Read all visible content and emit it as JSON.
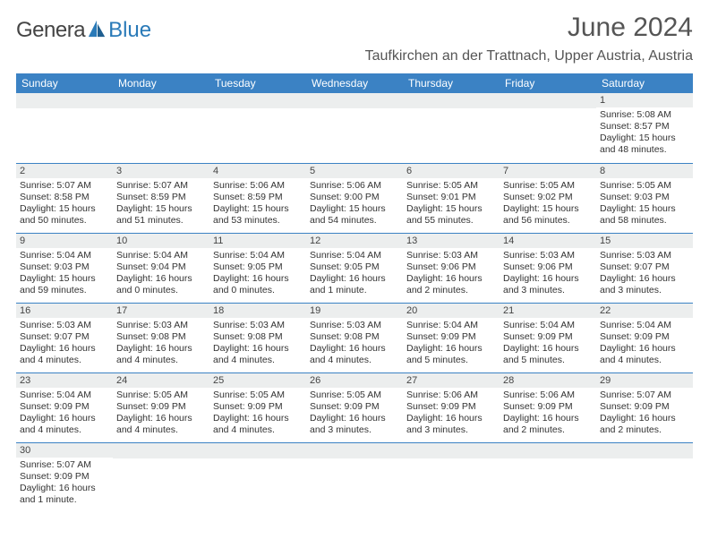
{
  "brand": {
    "text1": "Genera",
    "text2": "Blue",
    "sail_color": "#2a7ab8"
  },
  "title": "June 2024",
  "location": "Taufkirchen an der Trattnach, Upper Austria, Austria",
  "colors": {
    "header_bg": "#3b82c4",
    "header_fg": "#ffffff",
    "daynum_bg": "#eceeee",
    "row_border": "#3b82c4"
  },
  "weekdays": [
    "Sunday",
    "Monday",
    "Tuesday",
    "Wednesday",
    "Thursday",
    "Friday",
    "Saturday"
  ],
  "weeks": [
    [
      null,
      null,
      null,
      null,
      null,
      null,
      {
        "n": "1",
        "rise": "Sunrise: 5:08 AM",
        "set": "Sunset: 8:57 PM",
        "day": "Daylight: 15 hours and 48 minutes."
      }
    ],
    [
      {
        "n": "2",
        "rise": "Sunrise: 5:07 AM",
        "set": "Sunset: 8:58 PM",
        "day": "Daylight: 15 hours and 50 minutes."
      },
      {
        "n": "3",
        "rise": "Sunrise: 5:07 AM",
        "set": "Sunset: 8:59 PM",
        "day": "Daylight: 15 hours and 51 minutes."
      },
      {
        "n": "4",
        "rise": "Sunrise: 5:06 AM",
        "set": "Sunset: 8:59 PM",
        "day": "Daylight: 15 hours and 53 minutes."
      },
      {
        "n": "5",
        "rise": "Sunrise: 5:06 AM",
        "set": "Sunset: 9:00 PM",
        "day": "Daylight: 15 hours and 54 minutes."
      },
      {
        "n": "6",
        "rise": "Sunrise: 5:05 AM",
        "set": "Sunset: 9:01 PM",
        "day": "Daylight: 15 hours and 55 minutes."
      },
      {
        "n": "7",
        "rise": "Sunrise: 5:05 AM",
        "set": "Sunset: 9:02 PM",
        "day": "Daylight: 15 hours and 56 minutes."
      },
      {
        "n": "8",
        "rise": "Sunrise: 5:05 AM",
        "set": "Sunset: 9:03 PM",
        "day": "Daylight: 15 hours and 58 minutes."
      }
    ],
    [
      {
        "n": "9",
        "rise": "Sunrise: 5:04 AM",
        "set": "Sunset: 9:03 PM",
        "day": "Daylight: 15 hours and 59 minutes."
      },
      {
        "n": "10",
        "rise": "Sunrise: 5:04 AM",
        "set": "Sunset: 9:04 PM",
        "day": "Daylight: 16 hours and 0 minutes."
      },
      {
        "n": "11",
        "rise": "Sunrise: 5:04 AM",
        "set": "Sunset: 9:05 PM",
        "day": "Daylight: 16 hours and 0 minutes."
      },
      {
        "n": "12",
        "rise": "Sunrise: 5:04 AM",
        "set": "Sunset: 9:05 PM",
        "day": "Daylight: 16 hours and 1 minute."
      },
      {
        "n": "13",
        "rise": "Sunrise: 5:03 AM",
        "set": "Sunset: 9:06 PM",
        "day": "Daylight: 16 hours and 2 minutes."
      },
      {
        "n": "14",
        "rise": "Sunrise: 5:03 AM",
        "set": "Sunset: 9:06 PM",
        "day": "Daylight: 16 hours and 3 minutes."
      },
      {
        "n": "15",
        "rise": "Sunrise: 5:03 AM",
        "set": "Sunset: 9:07 PM",
        "day": "Daylight: 16 hours and 3 minutes."
      }
    ],
    [
      {
        "n": "16",
        "rise": "Sunrise: 5:03 AM",
        "set": "Sunset: 9:07 PM",
        "day": "Daylight: 16 hours and 4 minutes."
      },
      {
        "n": "17",
        "rise": "Sunrise: 5:03 AM",
        "set": "Sunset: 9:08 PM",
        "day": "Daylight: 16 hours and 4 minutes."
      },
      {
        "n": "18",
        "rise": "Sunrise: 5:03 AM",
        "set": "Sunset: 9:08 PM",
        "day": "Daylight: 16 hours and 4 minutes."
      },
      {
        "n": "19",
        "rise": "Sunrise: 5:03 AM",
        "set": "Sunset: 9:08 PM",
        "day": "Daylight: 16 hours and 4 minutes."
      },
      {
        "n": "20",
        "rise": "Sunrise: 5:04 AM",
        "set": "Sunset: 9:09 PM",
        "day": "Daylight: 16 hours and 5 minutes."
      },
      {
        "n": "21",
        "rise": "Sunrise: 5:04 AM",
        "set": "Sunset: 9:09 PM",
        "day": "Daylight: 16 hours and 5 minutes."
      },
      {
        "n": "22",
        "rise": "Sunrise: 5:04 AM",
        "set": "Sunset: 9:09 PM",
        "day": "Daylight: 16 hours and 4 minutes."
      }
    ],
    [
      {
        "n": "23",
        "rise": "Sunrise: 5:04 AM",
        "set": "Sunset: 9:09 PM",
        "day": "Daylight: 16 hours and 4 minutes."
      },
      {
        "n": "24",
        "rise": "Sunrise: 5:05 AM",
        "set": "Sunset: 9:09 PM",
        "day": "Daylight: 16 hours and 4 minutes."
      },
      {
        "n": "25",
        "rise": "Sunrise: 5:05 AM",
        "set": "Sunset: 9:09 PM",
        "day": "Daylight: 16 hours and 4 minutes."
      },
      {
        "n": "26",
        "rise": "Sunrise: 5:05 AM",
        "set": "Sunset: 9:09 PM",
        "day": "Daylight: 16 hours and 3 minutes."
      },
      {
        "n": "27",
        "rise": "Sunrise: 5:06 AM",
        "set": "Sunset: 9:09 PM",
        "day": "Daylight: 16 hours and 3 minutes."
      },
      {
        "n": "28",
        "rise": "Sunrise: 5:06 AM",
        "set": "Sunset: 9:09 PM",
        "day": "Daylight: 16 hours and 2 minutes."
      },
      {
        "n": "29",
        "rise": "Sunrise: 5:07 AM",
        "set": "Sunset: 9:09 PM",
        "day": "Daylight: 16 hours and 2 minutes."
      }
    ],
    [
      {
        "n": "30",
        "rise": "Sunrise: 5:07 AM",
        "set": "Sunset: 9:09 PM",
        "day": "Daylight: 16 hours and 1 minute."
      },
      null,
      null,
      null,
      null,
      null,
      null
    ]
  ]
}
